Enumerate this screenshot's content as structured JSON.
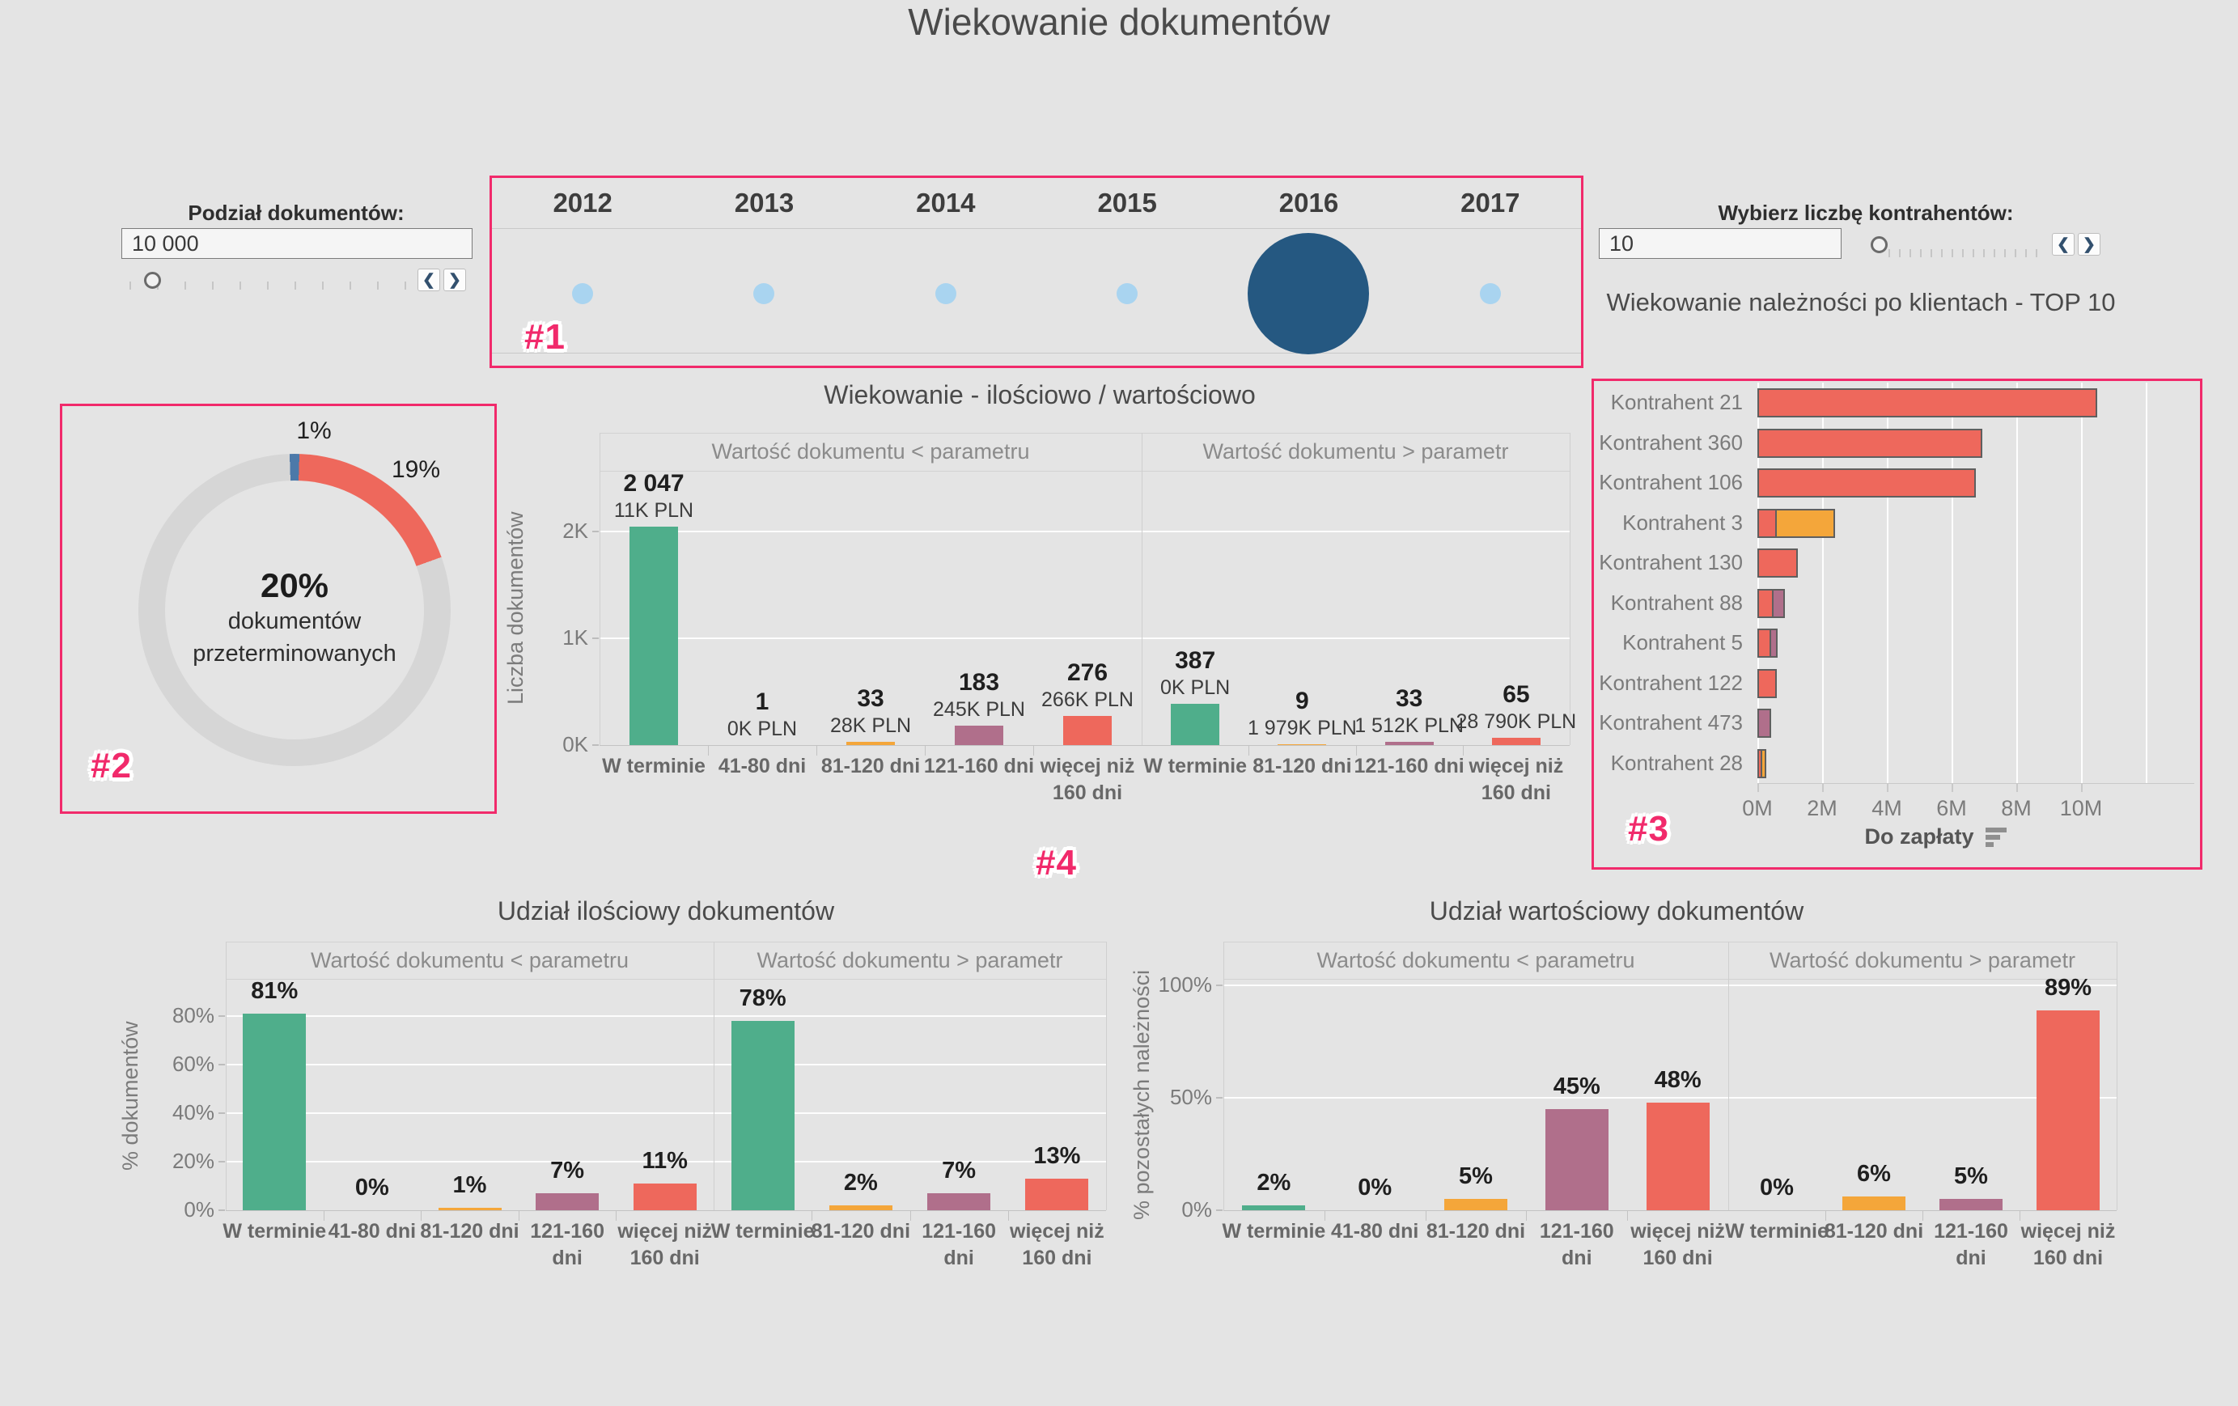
{
  "page_title": "Wiekowanie dokumentów",
  "colors": {
    "pink": "#F12A6B",
    "green": "#4FAE8B",
    "amber": "#F4A63A",
    "mauve": "#B06F8B",
    "salmon": "#EE685C",
    "blue": "#4C79A9",
    "navy": "#255881",
    "lightblue": "#A9D4F0",
    "ringGray": "#D6D6D6"
  },
  "controls": {
    "left": {
      "label": "Podział dokumentów:",
      "value": "10 000",
      "prev": "❮",
      "next": "❯"
    },
    "right": {
      "label": "Wybierz liczbę kontrahentów:",
      "value": "10",
      "prev": "❮",
      "next": "❯"
    }
  },
  "year_selector": {
    "tag": "#1",
    "years": [
      "2012",
      "2013",
      "2014",
      "2015",
      "2016",
      "2017"
    ],
    "selected": "2016"
  },
  "chart_data": [
    {
      "id": "overdue-donut",
      "type": "pie",
      "tag": "#2",
      "slices": [
        {
          "label": "1%",
          "value": 1,
          "color": "blue"
        },
        {
          "label": "19%",
          "value": 19,
          "color": "salmon"
        },
        {
          "label": "",
          "value": 80,
          "color": "ringGray"
        }
      ],
      "center": {
        "value": "20%",
        "line1": "dokumentów",
        "line2": "przeterminowanych"
      }
    },
    {
      "id": "aging-count-value",
      "type": "bar",
      "tag": "#4",
      "title": "Wiekowanie - ilościowo / wartościowo",
      "ylabel": "Liczba dokumentów",
      "yticks": [
        "0K",
        "1K",
        "2K"
      ],
      "ytick_units": [
        0,
        1000,
        2000
      ],
      "panels": [
        {
          "header": "Wartość dokumentu < parametru",
          "bars": [
            {
              "category": "W terminie",
              "count": "2 047",
              "amount": "11K PLN",
              "value": 2047,
              "color": "green"
            },
            {
              "category": "41-80 dni",
              "count": "1",
              "amount": "0K PLN",
              "value": 1,
              "color": "amber"
            },
            {
              "category": "81-120 dni",
              "count": "33",
              "amount": "28K PLN",
              "value": 33,
              "color": "amber"
            },
            {
              "category": "121-160 dni",
              "count": "183",
              "amount": "245K PLN",
              "value": 183,
              "color": "mauve"
            },
            {
              "category": "więcej niż 160 dni",
              "count": "276",
              "amount": "266K PLN",
              "value": 276,
              "color": "salmon"
            }
          ]
        },
        {
          "header": "Wartość dokumentu > parametr",
          "bars": [
            {
              "category": "W terminie",
              "count": "387",
              "amount": "0K PLN",
              "value": 387,
              "color": "green"
            },
            {
              "category": "81-120 dni",
              "count": "9",
              "amount": "1 979K PLN",
              "value": 9,
              "color": "amber"
            },
            {
              "category": "121-160 dni",
              "count": "33",
              "amount": "1 512K PLN",
              "value": 33,
              "color": "mauve"
            },
            {
              "category": "więcej niż 160 dni",
              "count": "65",
              "amount": "28 790K PLN",
              "value": 65,
              "color": "salmon"
            }
          ]
        }
      ]
    },
    {
      "id": "top10-clients",
      "type": "bar-horizontal",
      "tag": "#3",
      "title": "Wiekowanie należności po klientach - TOP 10",
      "xlabel": "Do zapłaty",
      "xticks": [
        "0M",
        "2M",
        "4M",
        "6M",
        "8M",
        "10M"
      ],
      "unit": "M PLN",
      "rows": [
        {
          "label": "Kontrahent 21",
          "segments": [
            {
              "color": "salmon",
              "value": 10.5
            }
          ]
        },
        {
          "label": "Kontrahent 360",
          "segments": [
            {
              "color": "salmon",
              "value": 6.95
            }
          ]
        },
        {
          "label": "Kontrahent 106",
          "segments": [
            {
              "color": "salmon",
              "value": 6.75
            }
          ]
        },
        {
          "label": "Kontrahent 3",
          "segments": [
            {
              "color": "salmon",
              "value": 0.6
            },
            {
              "color": "amber",
              "value": 1.85
            }
          ]
        },
        {
          "label": "Kontrahent 130",
          "segments": [
            {
              "color": "salmon",
              "value": 1.25
            }
          ]
        },
        {
          "label": "Kontrahent 88",
          "segments": [
            {
              "color": "salmon",
              "value": 0.5
            },
            {
              "color": "mauve",
              "value": 0.4
            }
          ]
        },
        {
          "label": "Kontrahent 5",
          "segments": [
            {
              "color": "salmon",
              "value": 0.42
            },
            {
              "color": "mauve",
              "value": 0.25
            }
          ]
        },
        {
          "label": "Kontrahent 122",
          "segments": [
            {
              "color": "salmon",
              "value": 0.6
            }
          ]
        },
        {
          "label": "Kontrahent 473",
          "segments": [
            {
              "color": "mauve",
              "value": 0.43
            }
          ]
        },
        {
          "label": "Kontrahent 28",
          "segments": [
            {
              "color": "salmon",
              "value": 0.15
            },
            {
              "color": "amber",
              "value": 0.18
            }
          ]
        }
      ]
    },
    {
      "id": "share-count",
      "type": "bar",
      "title": "Udział ilościowy dokumentów",
      "ylabel": "% dokumentów",
      "yticks": [
        "0%",
        "20%",
        "40%",
        "60%",
        "80%"
      ],
      "ytick_units": [
        0,
        20,
        40,
        60,
        80
      ],
      "panels": [
        {
          "header": "Wartość dokumentu < parametru",
          "bars": [
            {
              "category": "W terminie",
              "count": "81%",
              "value": 81,
              "color": "green"
            },
            {
              "category": "41-80 dni",
              "count": "0%",
              "value": 0,
              "color": "amber"
            },
            {
              "category": "81-120 dni",
              "count": "1%",
              "value": 1,
              "color": "amber"
            },
            {
              "category": "121-160 dni",
              "count": "7%",
              "value": 7,
              "color": "mauve"
            },
            {
              "category": "więcej niż 160 dni",
              "count": "11%",
              "value": 11,
              "color": "salmon"
            }
          ]
        },
        {
          "header": "Wartość dokumentu > parametr",
          "bars": [
            {
              "category": "W terminie",
              "count": "78%",
              "value": 78,
              "color": "green"
            },
            {
              "category": "81-120 dni",
              "count": "2%",
              "value": 2,
              "color": "amber"
            },
            {
              "category": "121-160 dni",
              "count": "7%",
              "value": 7,
              "color": "mauve"
            },
            {
              "category": "więcej niż 160 dni",
              "count": "13%",
              "value": 13,
              "color": "salmon"
            }
          ]
        }
      ]
    },
    {
      "id": "share-value",
      "type": "bar",
      "title": "Udział wartościowy dokumentów",
      "ylabel": "% pozostałych należności",
      "yticks": [
        "0%",
        "50%",
        "100%"
      ],
      "ytick_units": [
        0,
        50,
        100
      ],
      "panels": [
        {
          "header": "Wartość dokumentu < parametru",
          "bars": [
            {
              "category": "W terminie",
              "count": "2%",
              "value": 2,
              "color": "green"
            },
            {
              "category": "41-80 dni",
              "count": "0%",
              "value": 0,
              "color": "amber"
            },
            {
              "category": "81-120 dni",
              "count": "5%",
              "value": 5,
              "color": "amber"
            },
            {
              "category": "121-160 dni",
              "count": "45%",
              "value": 45,
              "color": "mauve"
            },
            {
              "category": "więcej niż 160 dni",
              "count": "48%",
              "value": 48,
              "color": "salmon"
            }
          ]
        },
        {
          "header": "Wartość dokumentu > parametr",
          "bars": [
            {
              "category": "W terminie",
              "count": "0%",
              "value": 0,
              "color": "green"
            },
            {
              "category": "81-120 dni",
              "count": "6%",
              "value": 6,
              "color": "amber"
            },
            {
              "category": "121-160 dni",
              "count": "5%",
              "value": 5,
              "color": "mauve"
            },
            {
              "category": "więcej niż 160 dni",
              "count": "89%",
              "value": 89,
              "color": "salmon"
            }
          ]
        }
      ]
    }
  ]
}
